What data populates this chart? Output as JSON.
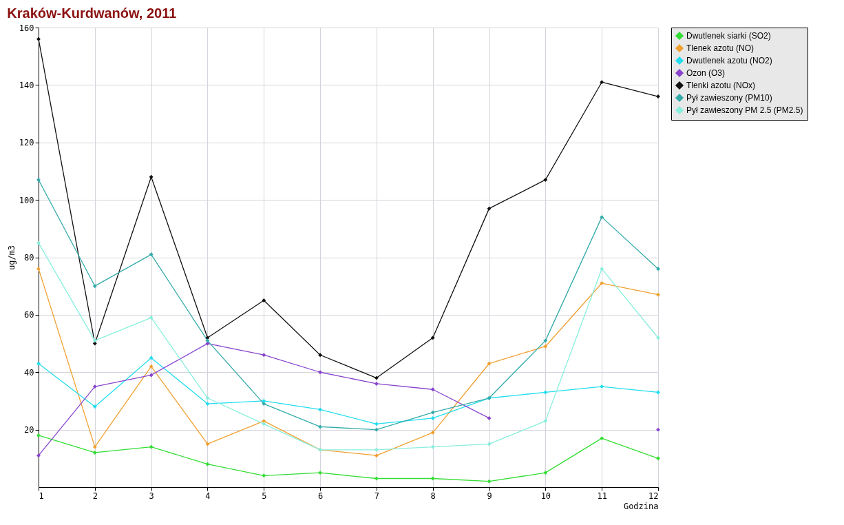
{
  "chart_data": {
    "type": "line",
    "title": "Kraków-Kurdwanów, 2011",
    "xlabel": "Godzina",
    "ylabel": "ug/m3",
    "x": [
      1,
      2,
      3,
      4,
      5,
      6,
      7,
      8,
      9,
      10,
      11,
      12
    ],
    "xlim": [
      1,
      12
    ],
    "xticks": [
      1,
      2,
      3,
      4,
      5,
      6,
      7,
      8,
      9,
      10,
      11,
      12
    ],
    "ylim": [
      0,
      160
    ],
    "yticks": [
      20,
      40,
      60,
      80,
      100,
      120,
      140,
      160
    ],
    "grid": true,
    "legend": "top right",
    "marker": "diamond",
    "series": [
      {
        "name": "Dwutlenek siarki (SO2)",
        "color": "#33dd33",
        "values": [
          18,
          12,
          14,
          8,
          4,
          5,
          3,
          3,
          2,
          5,
          17,
          10
        ]
      },
      {
        "name": "Tlenek azotu (NO)",
        "color": "#f0a030",
        "values": [
          76,
          14,
          42,
          15,
          23,
          13,
          11,
          19,
          43,
          49,
          71,
          67
        ]
      },
      {
        "name": "Dwutlenek azotu (NO2)",
        "color": "#22ddee",
        "values": [
          43,
          28,
          45,
          29,
          30,
          27,
          22,
          24,
          31,
          33,
          35,
          33
        ]
      },
      {
        "name": "Ozon (O3)",
        "color": "#8844cc",
        "values": [
          11,
          35,
          39,
          50,
          46,
          40,
          36,
          34,
          24,
          null,
          null,
          20
        ]
      },
      {
        "name": "Tlenki azotu (NOx)",
        "color": "#111111",
        "values": [
          156,
          50,
          108,
          52,
          65,
          46,
          38,
          52,
          97,
          107,
          141,
          136
        ]
      },
      {
        "name": "Pył zawieszony (PM10)",
        "color": "#33aaaa",
        "values": [
          107,
          70,
          81,
          51,
          29,
          21,
          20,
          26,
          31,
          51,
          94,
          76
        ]
      },
      {
        "name": "Pył zawieszony PM 2.5 (PM2.5)",
        "color": "#88eedd",
        "values": [
          85,
          51,
          59,
          31,
          22,
          13,
          13,
          14,
          15,
          23,
          76,
          52
        ]
      }
    ]
  }
}
